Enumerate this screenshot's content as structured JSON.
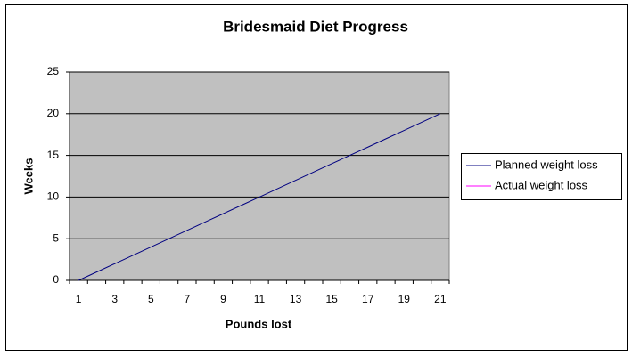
{
  "chart_data": {
    "type": "line",
    "title": "Bridesmaid Diet Progress",
    "x_label": "Pounds lost",
    "y_label": "Weeks",
    "categories": [
      "1",
      null,
      "3",
      null,
      "5",
      null,
      "7",
      null,
      "9",
      null,
      "11",
      null,
      "13",
      null,
      "15",
      null,
      "17",
      null,
      "19",
      null,
      "21"
    ],
    "series": [
      {
        "name": "Planned weight loss",
        "color": "#000080",
        "values": [
          0,
          1,
          2,
          3,
          4,
          5,
          6,
          7,
          8,
          9,
          10,
          11,
          12,
          13,
          14,
          15,
          16,
          17,
          18,
          19,
          20
        ]
      },
      {
        "name": "Actual weight loss",
        "color": "#ff00ff",
        "values": [
          null,
          null,
          null,
          null,
          null,
          null,
          null,
          null,
          null,
          null,
          null,
          null,
          null,
          null,
          null,
          null,
          null,
          null,
          null,
          null,
          null
        ]
      }
    ],
    "ylim": [
      0,
      25
    ],
    "yticks": [
      0,
      5,
      10,
      15,
      20,
      25
    ],
    "grid": true,
    "legend": "right"
  }
}
